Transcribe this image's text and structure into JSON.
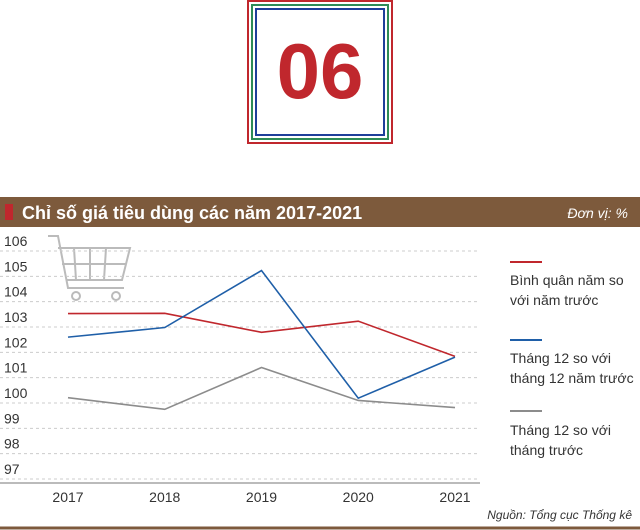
{
  "badge": "06",
  "chart_data": {
    "type": "line",
    "title": "Chỉ số giá tiêu dùng các năm 2017-2021",
    "unit": "Đơn vị: %",
    "source": "Nguồn: Tổng cục Thống kê",
    "categories": [
      "2017",
      "2018",
      "2019",
      "2020",
      "2021"
    ],
    "series": [
      {
        "name": "Bình quân năm so với năm trước",
        "color": "#c0272d",
        "values": [
          103.53,
          103.54,
          102.79,
          103.23,
          101.84
        ]
      },
      {
        "name": "Tháng 12 so với tháng 12 năm trước",
        "color": "#1f5fa8",
        "values": [
          102.6,
          102.98,
          105.23,
          100.19,
          101.81
        ]
      },
      {
        "name": "Tháng 12 so với tháng trước",
        "color": "#8c8c8c",
        "values": [
          100.21,
          99.75,
          101.4,
          100.1,
          99.82
        ]
      }
    ],
    "ylim": [
      97,
      106
    ],
    "yticks": [
      97,
      98,
      99,
      100,
      101,
      102,
      103,
      104,
      105,
      106
    ],
    "grid": true
  }
}
